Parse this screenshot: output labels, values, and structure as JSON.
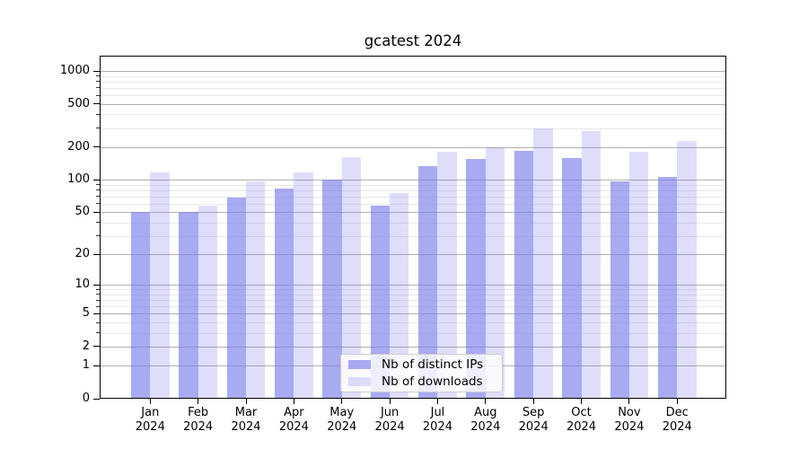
{
  "figure": {
    "background": "#ffffff"
  },
  "chart_data": {
    "type": "bar",
    "title": "gcatest 2024",
    "categories": [
      "Jan",
      "Feb",
      "Mar",
      "Apr",
      "May",
      "Jun",
      "Jul",
      "Aug",
      "Sep",
      "Oct",
      "Nov",
      "Dec"
    ],
    "category_year": "2024",
    "series": [
      {
        "name": "Nb of distinct IPs",
        "color": "rgba(122,124,235,0.65)",
        "values": [
          50,
          50,
          68,
          83,
          100,
          58,
          134,
          155,
          185,
          158,
          97,
          107
        ]
      },
      {
        "name": "Nb of downloads",
        "color": "rgba(122,124,235,0.25)",
        "values": [
          117,
          58,
          96,
          117,
          162,
          75,
          183,
          200,
          298,
          282,
          181,
          228
        ]
      }
    ],
    "xlabel": "",
    "ylabel": "",
    "yscale": "log1p",
    "ylim": [
      0,
      1360
    ],
    "yticks": [
      0,
      1,
      2,
      5,
      10,
      20,
      50,
      100,
      200,
      500,
      1000
    ],
    "minor_gridlines": [
      3,
      4,
      6,
      7,
      8,
      9,
      30,
      40,
      60,
      70,
      80,
      90,
      300,
      400,
      600,
      700,
      800,
      900
    ],
    "grid": true,
    "legend_position": "inside-bottom-center",
    "colors": {
      "major_grid": "#b0b0b0",
      "minor_grid": "#e8e8e8",
      "spine": "#000000",
      "text": "#000000",
      "legend_border": "#cccccc",
      "legend_bg": "rgba(255,255,255,0.8)"
    }
  }
}
